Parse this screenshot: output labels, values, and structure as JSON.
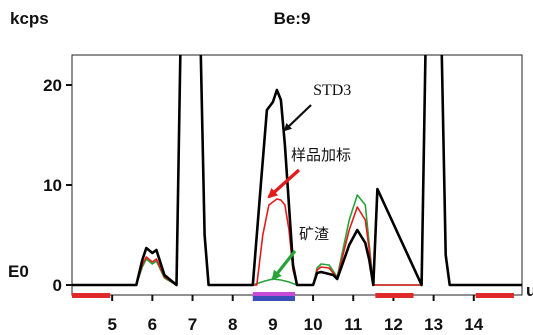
{
  "chart_data": {
    "type": "line",
    "title": "Be:9",
    "ylabel": "kcps",
    "xlabel": "u",
    "xlim": [
      4,
      15.2
    ],
    "ylim": [
      -1,
      23
    ],
    "x_ticks": [
      5,
      6,
      7,
      8,
      9,
      10,
      11,
      12,
      13,
      14
    ],
    "y_ticks": [
      {
        "value": 20,
        "label": "20"
      },
      {
        "value": 10,
        "label": "10"
      },
      {
        "value": 0,
        "label": "0"
      }
    ],
    "y_extra_label": {
      "value": 1.8,
      "label": "E0"
    },
    "grid": false,
    "series": [
      {
        "name": "STD3",
        "color": "#000000",
        "x": [
          4.0,
          5.6,
          5.75,
          5.85,
          6.0,
          6.1,
          6.3,
          6.6,
          6.7,
          6.8,
          7.2,
          7.3,
          7.4,
          8.5,
          8.7,
          8.85,
          9.0,
          9.1,
          9.2,
          9.3,
          9.5,
          9.6,
          10.0,
          10.1,
          10.2,
          10.5,
          10.6,
          10.9,
          11.1,
          11.3,
          11.4,
          11.5,
          11.6,
          12.7,
          12.8,
          12.9,
          13.2,
          13.3,
          13.4,
          15.2
        ],
        "y": [
          0,
          0,
          2.5,
          3.7,
          3.2,
          3.5,
          1.0,
          0,
          24,
          24,
          24,
          5,
          0,
          0,
          10,
          17.5,
          18.3,
          19.5,
          18.5,
          14,
          2,
          0,
          0,
          1.2,
          1.3,
          1.0,
          0.6,
          4.0,
          5.5,
          4.2,
          2.5,
          0,
          9.6,
          0,
          24,
          24,
          24,
          3,
          0,
          0
        ]
      },
      {
        "name": "样品加标",
        "color": "#e21b1b",
        "x": [
          4.0,
          5.6,
          5.75,
          5.85,
          6.0,
          6.1,
          6.3,
          6.6,
          6.7,
          6.8,
          7.2,
          7.3,
          7.4,
          8.6,
          8.75,
          8.9,
          9.1,
          9.2,
          9.3,
          9.4,
          9.5,
          9.6,
          10.0,
          10.1,
          10.2,
          10.4,
          10.6,
          10.9,
          11.1,
          11.3,
          11.4,
          11.5,
          12.7,
          12.8,
          12.9,
          13.2,
          13.3,
          13.4,
          15.2
        ],
        "y": [
          0,
          0,
          2.0,
          2.8,
          2.3,
          2.6,
          0.8,
          0,
          24,
          24,
          24,
          5,
          0,
          0,
          5,
          8.0,
          8.6,
          8.5,
          8.0,
          5.5,
          1.5,
          0,
          0,
          1.5,
          1.8,
          1.7,
          0.7,
          5.5,
          7.8,
          6.5,
          3.5,
          0,
          0,
          24,
          24,
          24,
          3,
          0,
          0
        ]
      },
      {
        "name": "矿渣",
        "color": "#27a33a",
        "x": [
          4.0,
          5.6,
          5.75,
          5.85,
          6.0,
          6.1,
          6.3,
          6.6,
          6.7,
          6.8,
          7.2,
          7.3,
          7.4,
          8.5,
          8.8,
          9.0,
          9.2,
          9.4,
          9.6,
          10.0,
          10.1,
          10.2,
          10.4,
          10.6,
          10.9,
          11.1,
          11.3,
          11.4,
          11.5,
          12.7,
          12.8,
          12.9,
          13.2,
          13.3,
          13.4,
          15.2
        ],
        "y": [
          0,
          0,
          1.8,
          2.6,
          2.1,
          2.4,
          0.7,
          0,
          24,
          24,
          24,
          5,
          0,
          0,
          0.4,
          0.6,
          0.5,
          0.3,
          0,
          0,
          1.7,
          2.1,
          2.0,
          0.8,
          6.5,
          9.0,
          8.0,
          4.0,
          0,
          0,
          24,
          24,
          24,
          3,
          0,
          0
        ]
      }
    ],
    "annotations": [
      {
        "text": "STD3",
        "x": 10.0,
        "y": 19.0,
        "arrow_to": [
          9.3,
          15.5
        ],
        "arrow_color": "#111111"
      },
      {
        "text": "样品加标",
        "x": 9.45,
        "y": 12.5,
        "arrow_to": [
          8.9,
          8.8
        ],
        "arrow_color": "#e21b1b"
      },
      {
        "text": "矿渣",
        "x": 9.65,
        "y": 4.6,
        "arrow_to": [
          9.0,
          0.6
        ],
        "arrow_color": "#27a33a"
      }
    ],
    "baseline_segments": [
      {
        "from": 4.0,
        "to": 4.95,
        "color": "#e02a2a"
      },
      {
        "from": 8.5,
        "to": 9.55,
        "color": "#3b4fb8",
        "band": "#c74bd6"
      },
      {
        "from": 11.55,
        "to": 12.5,
        "color": "#e02a2a"
      },
      {
        "from": 14.05,
        "to": 15.0,
        "color": "#e02a2a"
      }
    ]
  }
}
